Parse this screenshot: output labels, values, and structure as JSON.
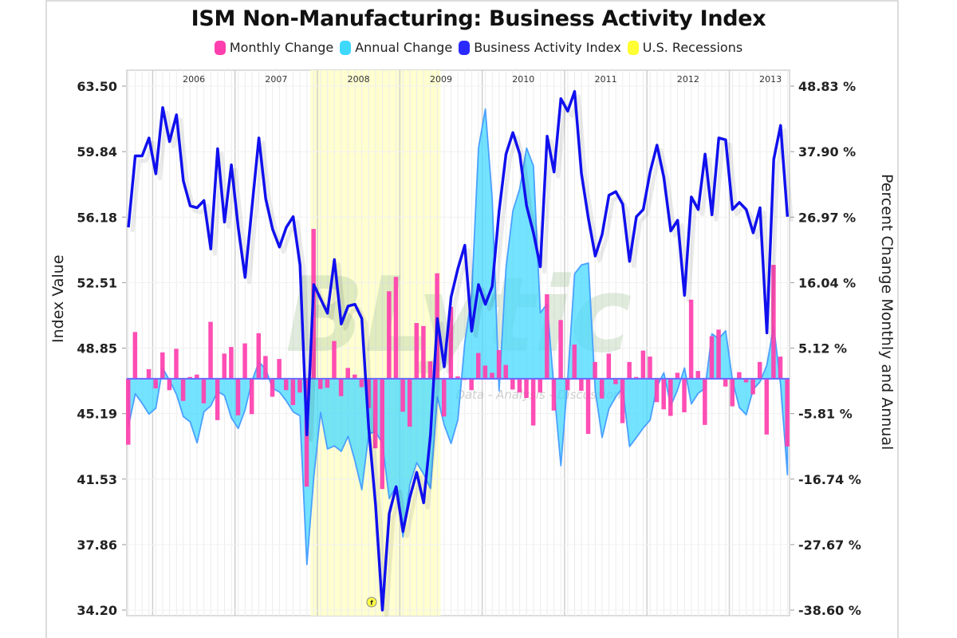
{
  "chart_data": {
    "type": "line",
    "title": "ISM Non-Manufacturing: Business Activity Index",
    "legend": [
      {
        "name": "Monthly Change",
        "color": "#ff3fae"
      },
      {
        "name": "Annual Change",
        "color": "#3fd8ff"
      },
      {
        "name": "Business Activity Index",
        "color": "#2a2aff"
      },
      {
        "name": "U.S. Recessions",
        "color": "#ffff33"
      }
    ],
    "legend_position": "top-center",
    "ylabel_left": "Index Value",
    "ylabel_right": "Percent Change Monthly and Annual",
    "ylim_left": [
      34.2,
      63.5
    ],
    "ylim_right": [
      -38.6,
      48.83
    ],
    "yticks_left": [
      "63.50",
      "59.84",
      "56.18",
      "52.51",
      "48.85",
      "45.19",
      "41.53",
      "37.86",
      "34.20"
    ],
    "yticks_right": [
      "48.83 %",
      "37.90 %",
      "26.97 %",
      "16.04 %",
      "5.12 %",
      "-5.81 %",
      "-16.74 %",
      "-27.67 %",
      "-38.60 %"
    ],
    "x_year_labels": [
      "2006",
      "2007",
      "2008",
      "2009",
      "2010",
      "2011",
      "2012",
      "2013"
    ],
    "x_start": "2005-09",
    "recession": {
      "start": "2007-12",
      "end": "2009-06"
    },
    "grid": true,
    "annotation_marker": "f",
    "watermark": {
      "brand": "BLytic",
      "tagline": "Data - Analysis - Discussion"
    },
    "series": [
      {
        "name": "Business Activity Index",
        "color": "#1010ee",
        "values": [
          55.6,
          59.6,
          59.6,
          60.6,
          58.6,
          62.3,
          60.4,
          61.9,
          58.2,
          56.8,
          56.7,
          57.1,
          54.4,
          60.0,
          55.9,
          59.1,
          55.6,
          52.8,
          56.7,
          60.6,
          57.2,
          55.5,
          54.5,
          55.6,
          56.2,
          53.5,
          44.0,
          52.4,
          51.6,
          50.8,
          53.8,
          50.2,
          51.2,
          51.3,
          50.5,
          44.4,
          40.1,
          34.2,
          39.6,
          41.1,
          38.6,
          40.5,
          41.9,
          40.2,
          44.0,
          50.5,
          47.8,
          51.7,
          53.3,
          54.6,
          49.8,
          52.4,
          51.3,
          52.3,
          56.5,
          59.7,
          60.9,
          59.7,
          56.8,
          55.3,
          53.4,
          60.7,
          58.7,
          62.8,
          62.1,
          63.2,
          58.6,
          56.1,
          54.0,
          55.2,
          57.4,
          57.6,
          56.9,
          53.7,
          56.2,
          56.6,
          58.7,
          60.2,
          58.4,
          55.4,
          56.0,
          51.8,
          57.3,
          56.6,
          59.7,
          56.3,
          60.6,
          60.5,
          56.6,
          57.0,
          56.6,
          55.3,
          56.7,
          49.7,
          59.4,
          61.3,
          56.2
        ]
      },
      {
        "name": "Monthly Change",
        "color": "#ff3fae",
        "values": [
          -11.0,
          7.8,
          0.0,
          1.6,
          -1.6,
          4.4,
          -1.9,
          5.0,
          -3.7,
          0.3,
          0.7,
          -4.1,
          9.5,
          -6.9,
          4.2,
          5.3,
          -6.1,
          5.9,
          -5.9,
          7.6,
          3.8,
          -3.0,
          3.3,
          -1.9,
          -4.4,
          -2.3,
          -18.0,
          25.0,
          -1.7,
          -1.5,
          6.3,
          -2.9,
          1.8,
          0.7,
          -1.4,
          -4.9,
          -11.6,
          -18.4,
          14.6,
          17.0,
          -5.5,
          -8.0,
          9.3,
          8.8,
          2.9,
          17.6,
          -6.3,
          12.0,
          0.4,
          -0.2,
          -1.9,
          4.3,
          2.2,
          1.0,
          4.8,
          2.3,
          -1.8,
          -2.3,
          -3.2,
          -7.8,
          -2.3,
          14.1,
          -5.3,
          9.8,
          -1.9,
          5.7,
          -2.0,
          -9.2,
          2.8,
          -3.3,
          4.2,
          -0.9,
          -7.4,
          2.8,
          0.3,
          4.7,
          3.7,
          -3.9,
          -5.1,
          -6.2,
          1.0,
          -5.6,
          13.2,
          1.3,
          -7.7,
          7.1,
          8.2,
          -1.3,
          -4.6,
          1.1,
          -0.6,
          -2.6,
          2.8,
          -9.3,
          19.0,
          3.7,
          -11.3
        ]
      },
      {
        "name": "Annual Change",
        "color": "#3fd8ff",
        "values": [
          -8.0,
          -2.5,
          -4.1,
          -5.9,
          -4.9,
          1.8,
          -0.3,
          -2.6,
          -6.3,
          -7.2,
          -10.7,
          -5.5,
          -4.5,
          -2.1,
          -2.8,
          -6.5,
          -8.3,
          -5.2,
          -0.4,
          2.8,
          1.6,
          -1.6,
          -2.2,
          -3.7,
          -5.5,
          -6.2,
          -31.0,
          -16.5,
          -5.6,
          -11.7,
          -11.2,
          -12.1,
          -9.6,
          -13.7,
          -18.5,
          -9.2,
          -8.8,
          -10.8,
          -20.0,
          -17.9,
          -26.4,
          -17.7,
          -14.0,
          -15.9,
          -18.3,
          -3.0,
          -7.7,
          -10.8,
          -6.8,
          6.0,
          14.0,
          38.5,
          45.0,
          30.0,
          -2.0,
          18.5,
          28.0,
          31.7,
          38.5,
          35.5,
          11.0,
          12.5,
          -1.8,
          -14.5,
          0.0,
          17.5,
          19.0,
          19.3,
          -2.0,
          -9.8,
          -5.0,
          -3.0,
          -1.5,
          -11.3,
          -9.8,
          -8.2,
          -6.9,
          -1.3,
          1.0,
          -4.5,
          -1.8,
          1.8,
          -4.2,
          -2.4,
          -1.6,
          7.5,
          6.7,
          8.0,
          -0.3,
          -4.8,
          -6.0,
          -1.8,
          -0.5,
          2.3,
          8.8,
          -1.0,
          -16.0
        ]
      }
    ]
  }
}
